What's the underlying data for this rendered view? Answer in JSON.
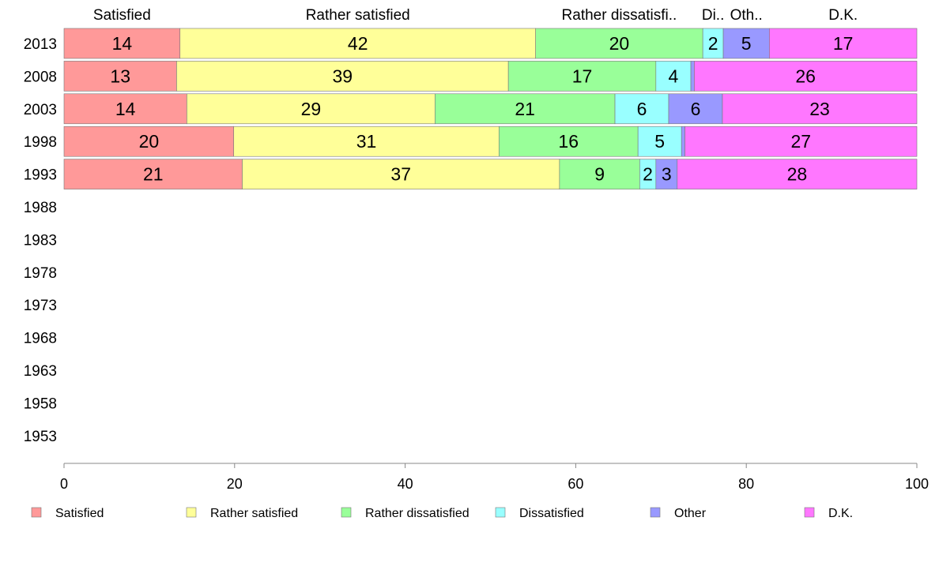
{
  "chart_data": {
    "type": "bar",
    "orientation": "horizontal",
    "stacked": true,
    "title": "",
    "xlabel": "",
    "ylabel": "",
    "xlim": [
      0,
      100
    ],
    "x_ticks": [
      "0",
      "20",
      "40",
      "60",
      "80",
      "100"
    ],
    "x_tick_values": [
      0,
      20,
      40,
      60,
      80,
      100
    ],
    "categories": [
      "2013",
      "2008",
      "2003",
      "1998",
      "1993",
      "1988",
      "1983",
      "1978",
      "1973",
      "1968",
      "1963",
      "1958",
      "1953"
    ],
    "top_series_labels": [
      "Satisfied",
      "Rather satisfied",
      "Rather dissatisfi..",
      "Di..",
      "Oth..",
      "D.K."
    ],
    "series": [
      {
        "name": "Satisfied",
        "color": "#FF9999",
        "values": [
          13.6,
          13.2,
          14.4,
          19.9,
          20.9,
          null,
          null,
          null,
          null,
          null,
          null,
          null,
          null
        ],
        "labels": [
          "14",
          "13",
          "14",
          "20",
          "21",
          "",
          "",
          "",
          "",
          "",
          "",
          "",
          ""
        ]
      },
      {
        "name": "Rather satisfied",
        "color": "#FFFF99",
        "values": [
          41.7,
          38.9,
          29.1,
          31.1,
          37.2,
          null,
          null,
          null,
          null,
          null,
          null,
          null,
          null
        ],
        "labels": [
          "42",
          "39",
          "29",
          "31",
          "37",
          "",
          "",
          "",
          "",
          "",
          "",
          "",
          ""
        ]
      },
      {
        "name": "Rather dissatisfied",
        "color": "#99FF99",
        "values": [
          19.6,
          17.3,
          21.1,
          16.3,
          9.4,
          null,
          null,
          null,
          null,
          null,
          null,
          null,
          null
        ],
        "labels": [
          "20",
          "17",
          "21",
          "16",
          "9",
          "",
          "",
          "",
          "",
          "",
          "",
          "",
          ""
        ]
      },
      {
        "name": "Dissatisfied",
        "color": "#99FFFF",
        "values": [
          2.4,
          4.1,
          6.3,
          5.1,
          1.9,
          null,
          null,
          null,
          null,
          null,
          null,
          null,
          null
        ],
        "labels": [
          "2",
          "4",
          "6",
          "5",
          "2",
          "",
          "",
          "",
          "",
          "",
          "",
          "",
          ""
        ]
      },
      {
        "name": "Other",
        "color": "#9999FF",
        "values": [
          5.4,
          0.4,
          6.3,
          0.4,
          2.5,
          null,
          null,
          null,
          null,
          null,
          null,
          null,
          null
        ],
        "labels": [
          "5",
          "",
          "6",
          "",
          "3",
          "",
          "",
          "",
          "",
          "",
          "",
          "",
          ""
        ]
      },
      {
        "name": "D.K.",
        "color": "#FF77FF",
        "values": [
          17.3,
          26.1,
          22.8,
          27.2,
          28.1,
          null,
          null,
          null,
          null,
          null,
          null,
          null,
          null
        ],
        "labels": [
          "17",
          "26",
          "23",
          "27",
          "28",
          "",
          "",
          "",
          "",
          "",
          "",
          "",
          ""
        ]
      }
    ],
    "legend": {
      "position": "bottom",
      "items": [
        "Satisfied",
        "Rather satisfied",
        "Rather dissatisfied",
        "Dissatisfied",
        "Other",
        "D.K."
      ]
    },
    "grid": false
  }
}
